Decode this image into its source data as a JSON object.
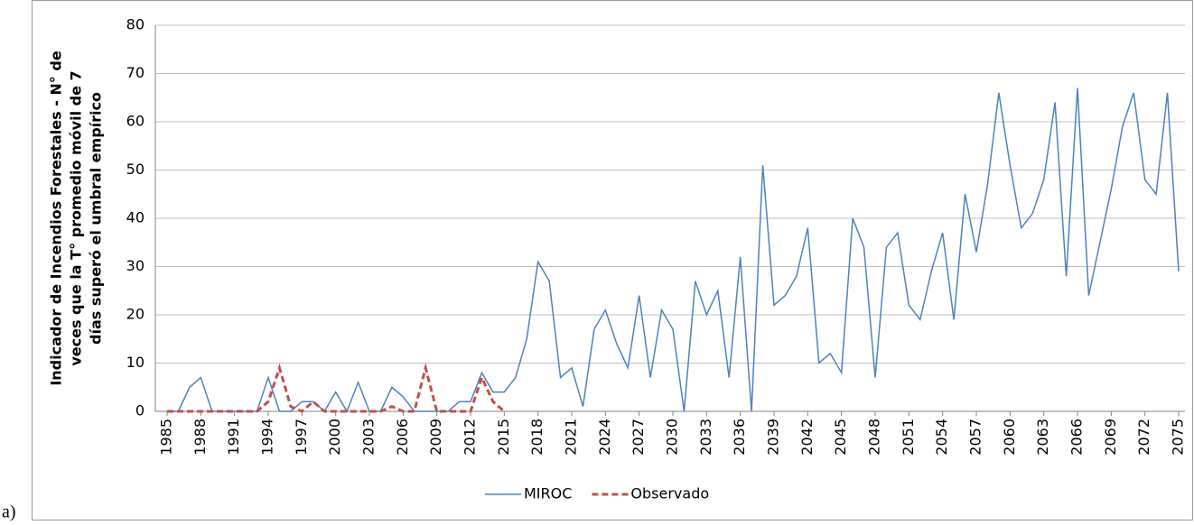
{
  "chart_data": {
    "type": "line",
    "panel_label": "a)",
    "y_label": [
      "Indicador de Incendios Forestales - N° de",
      "veces que la T° promedio móvil de 7",
      "días superó el umbral empírico"
    ],
    "x": [
      1985,
      1986,
      1987,
      1988,
      1989,
      1990,
      1991,
      1992,
      1993,
      1994,
      1995,
      1996,
      1997,
      1998,
      1999,
      2000,
      2001,
      2002,
      2003,
      2004,
      2005,
      2006,
      2007,
      2008,
      2009,
      2010,
      2011,
      2012,
      2013,
      2014,
      2015,
      2016,
      2017,
      2018,
      2019,
      2020,
      2021,
      2022,
      2023,
      2024,
      2025,
      2026,
      2027,
      2028,
      2029,
      2030,
      2031,
      2032,
      2033,
      2034,
      2035,
      2036,
      2037,
      2038,
      2039,
      2040,
      2041,
      2042,
      2043,
      2044,
      2045,
      2046,
      2047,
      2048,
      2049,
      2050,
      2051,
      2052,
      2053,
      2054,
      2055,
      2056,
      2057,
      2058,
      2059,
      2060,
      2061,
      2062,
      2063,
      2064,
      2065,
      2066,
      2067,
      2068,
      2069,
      2070,
      2071,
      2072,
      2073,
      2074,
      2075
    ],
    "xlim": [
      1985,
      2075
    ],
    "xticks": [
      1985,
      1988,
      1991,
      1994,
      1997,
      2000,
      2003,
      2006,
      2009,
      2012,
      2015,
      2018,
      2021,
      2024,
      2027,
      2030,
      2033,
      2036,
      2039,
      2042,
      2045,
      2048,
      2051,
      2054,
      2057,
      2060,
      2063,
      2066,
      2069,
      2072,
      2075
    ],
    "ylim": [
      0,
      80
    ],
    "yticks": [
      0,
      10,
      20,
      30,
      40,
      50,
      60,
      70,
      80
    ],
    "grid": true,
    "legend": "bottom",
    "series": [
      {
        "name": "MIROC",
        "color": "#4f81bd",
        "dash": false,
        "values": [
          0,
          0,
          5,
          7,
          0,
          0,
          0,
          0,
          0,
          7,
          0,
          0,
          2,
          2,
          0,
          4,
          0,
          6,
          0,
          0,
          5,
          3,
          0,
          0,
          0,
          0,
          2,
          2,
          8,
          4,
          4,
          7,
          15,
          31,
          27,
          7,
          9,
          1,
          17,
          21,
          14,
          9,
          24,
          7,
          21,
          17,
          0,
          27,
          20,
          25,
          7,
          32,
          0,
          51,
          22,
          24,
          28,
          38,
          10,
          12,
          8,
          40,
          34,
          7,
          34,
          37,
          22,
          19,
          29,
          37,
          19,
          45,
          33,
          47,
          66,
          51,
          38,
          41,
          48,
          64,
          28,
          67,
          24,
          35,
          46,
          59,
          66,
          48,
          45,
          66,
          29
        ]
      },
      {
        "name": "Observado",
        "color": "#c0504d",
        "dash": true,
        "values": [
          0,
          0,
          0,
          0,
          0,
          0,
          0,
          0,
          0,
          2,
          9,
          1,
          0,
          2,
          0,
          0,
          0,
          0,
          0,
          0,
          1,
          0,
          0,
          9,
          0,
          0,
          0,
          0,
          7,
          2,
          0,
          null,
          null,
          null,
          null,
          null,
          null,
          null,
          null,
          null,
          null,
          null,
          null,
          null,
          null,
          null,
          null,
          null,
          null,
          null,
          null,
          null,
          null,
          null,
          null,
          null,
          null,
          null,
          null,
          null,
          null,
          null,
          null,
          null,
          null,
          null,
          null,
          null,
          null,
          null,
          null,
          null,
          null,
          null,
          null,
          null,
          null,
          null,
          null,
          null,
          null,
          null,
          null,
          null,
          null,
          null,
          null,
          null,
          null,
          null,
          null
        ]
      }
    ]
  }
}
